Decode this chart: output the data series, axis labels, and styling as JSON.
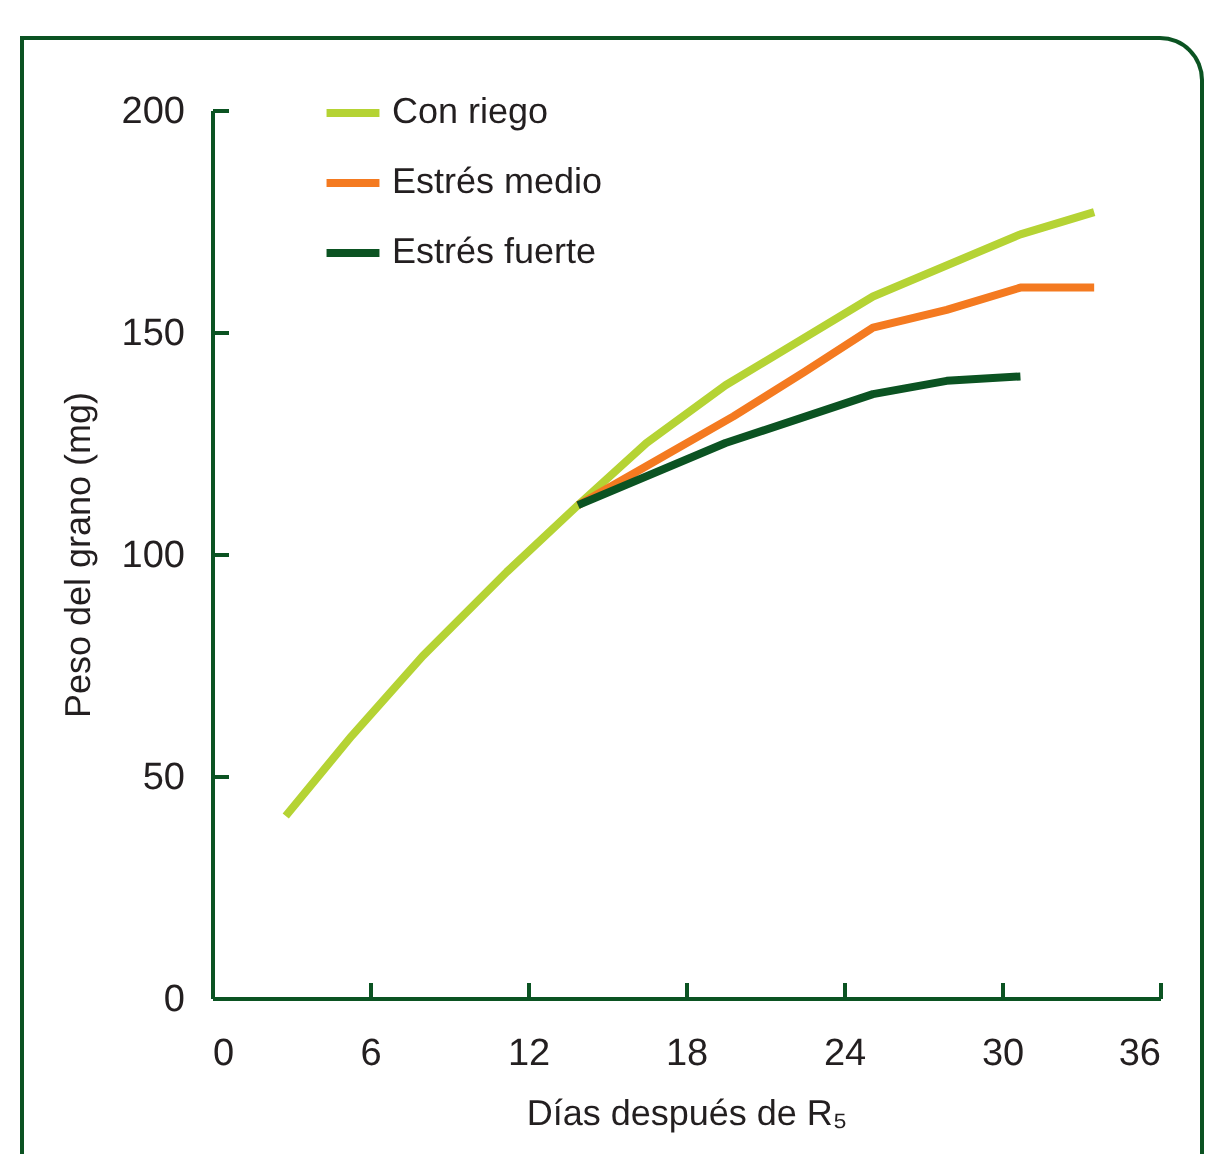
{
  "chart_data": {
    "type": "line",
    "xlabel": "Días después de R₅",
    "ylabel": "Peso del grano (mg)",
    "xlim": [
      0,
      36
    ],
    "xticks": [
      0,
      6,
      12,
      18,
      24,
      30,
      36
    ],
    "ylim": [
      0,
      200
    ],
    "yticks": [
      0,
      50,
      100,
      150,
      200
    ],
    "grid": false,
    "legend": "top left",
    "series": [
      {
        "name": "Con riego",
        "color": "#b5d334",
        "x": [
          2.8,
          5.3,
          8.0,
          11.2,
          13.9,
          16.5,
          19.5,
          25.1,
          30.7,
          33.5
        ],
        "values": [
          41,
          59,
          77,
          96,
          111,
          125,
          138,
          158,
          172,
          177
        ]
      },
      {
        "name": "Estrés medio",
        "color": "#f47a20",
        "x": [
          13.9,
          19.8,
          22.5,
          25.1,
          27.9,
          30.7,
          33.5
        ],
        "values": [
          111,
          131,
          141,
          151,
          155,
          160,
          160
        ]
      },
      {
        "name": "Estrés fuerte",
        "color": "#0b5322",
        "x": [
          13.9,
          19.5,
          25.1,
          27.9,
          30.7
        ],
        "values": [
          111,
          125,
          136,
          139,
          140
        ]
      }
    ]
  }
}
